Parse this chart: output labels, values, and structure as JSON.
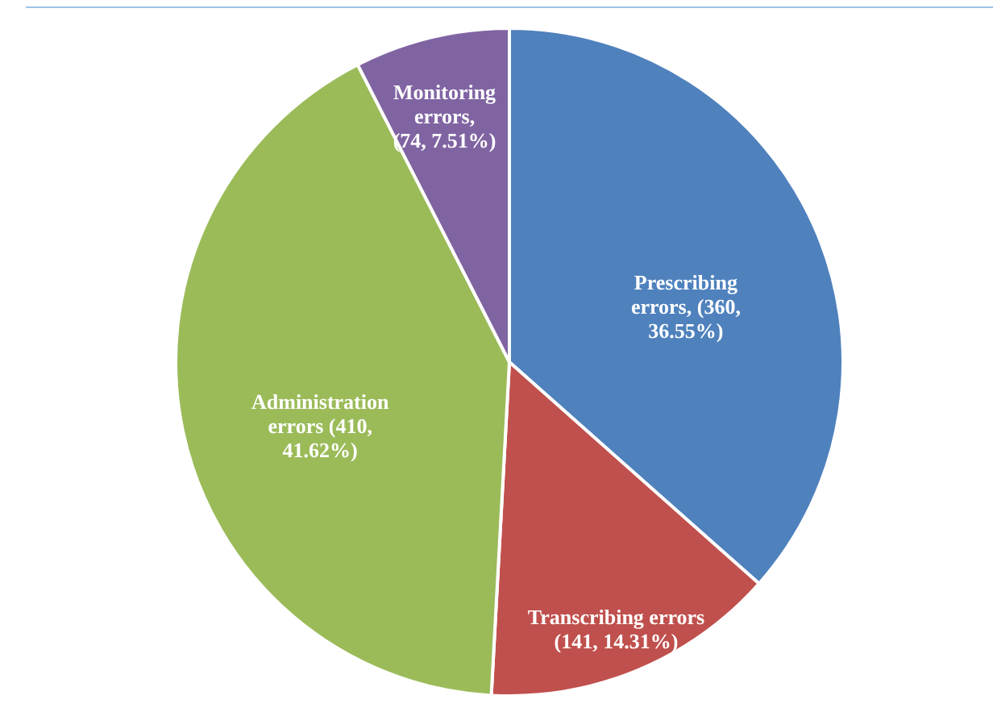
{
  "chart_data": {
    "type": "pie",
    "categories": [
      "Prescribing\nerrors, (360,\n36.55%)",
      "Transcribing  errors\n(141, 14.31%)",
      "Administration\nerrors (410,\n41.62%)",
      "Monitoring\nerrors,\n(74, 7.51%)"
    ],
    "values": [
      360,
      141,
      410,
      74
    ],
    "colors": [
      "#4f81bd",
      "#c0504d",
      "#9bbb59",
      "#8064a2"
    ]
  }
}
